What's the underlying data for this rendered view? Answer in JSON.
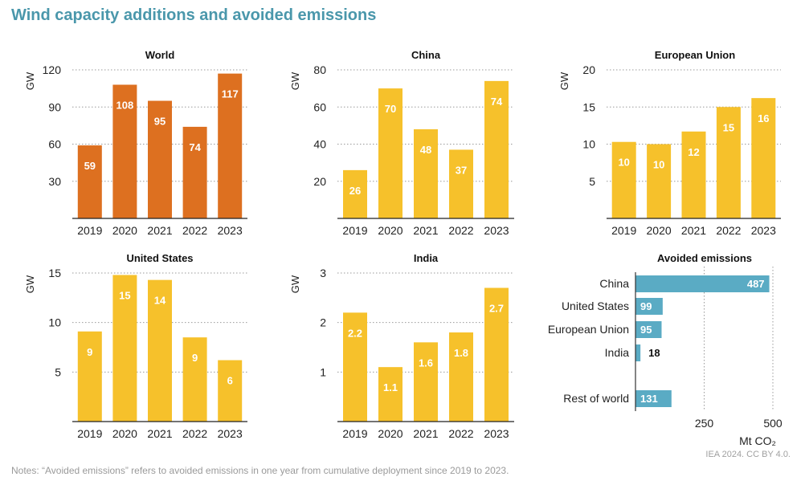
{
  "title": "Wind capacity additions and avoided emissions",
  "notes": "Notes: “Avoided emissions” refers to avoided emissions in one year from cumulative deployment since 2019 to 2023.",
  "credit": "IEA 2024. CC BY 4.0.",
  "colors": {
    "world": "#dd7020",
    "country": "#f6c12b",
    "emissions": "#5aabc4",
    "title": "#4a97ab"
  },
  "chart_data": [
    {
      "type": "bar",
      "title": "World",
      "ylabel": "GW",
      "categories": [
        "2019",
        "2020",
        "2021",
        "2022",
        "2023"
      ],
      "values": [
        59,
        108,
        95,
        74,
        117
      ],
      "labels": [
        "59",
        "108",
        "95",
        "74",
        "117"
      ],
      "ylim": [
        0,
        120
      ],
      "yticks": [
        30,
        60,
        90,
        120
      ],
      "color": "#dd7020",
      "grid": true
    },
    {
      "type": "bar",
      "title": "China",
      "ylabel": "GW",
      "categories": [
        "2019",
        "2020",
        "2021",
        "2022",
        "2023"
      ],
      "values": [
        26,
        70,
        48,
        37,
        74
      ],
      "labels": [
        "26",
        "70",
        "48",
        "37",
        "74"
      ],
      "ylim": [
        0,
        80
      ],
      "yticks": [
        20,
        40,
        60,
        80
      ],
      "color": "#f6c12b",
      "grid": true
    },
    {
      "type": "bar",
      "title": "European Union",
      "ylabel": "GW",
      "categories": [
        "2019",
        "2020",
        "2021",
        "2022",
        "2023"
      ],
      "values": [
        10.3,
        10,
        11.7,
        15,
        16.2
      ],
      "labels": [
        "10",
        "10",
        "12",
        "15",
        "16"
      ],
      "ylim": [
        0,
        20
      ],
      "yticks": [
        5,
        10,
        15,
        20
      ],
      "color": "#f6c12b",
      "grid": true
    },
    {
      "type": "bar",
      "title": "United States",
      "ylabel": "GW",
      "categories": [
        "2019",
        "2020",
        "2021",
        "2022",
        "2023"
      ],
      "values": [
        9.1,
        14.8,
        14.3,
        8.5,
        6.2
      ],
      "labels": [
        "9",
        "15",
        "14",
        "9",
        "6"
      ],
      "ylim": [
        0,
        15
      ],
      "yticks": [
        5,
        10,
        15
      ],
      "color": "#f6c12b",
      "grid": true
    },
    {
      "type": "bar",
      "title": "India",
      "ylabel": "GW",
      "categories": [
        "2019",
        "2020",
        "2021",
        "2022",
        "2023"
      ],
      "values": [
        2.2,
        1.1,
        1.6,
        1.8,
        2.7
      ],
      "labels": [
        "2.2",
        "1.1",
        "1.6",
        "1.8",
        "2.7"
      ],
      "ylim": [
        0,
        3
      ],
      "yticks": [
        1,
        2,
        3
      ],
      "color": "#f6c12b",
      "grid": true
    },
    {
      "type": "barh",
      "title": "Avoided emissions",
      "xlabel": "Mt CO₂",
      "categories": [
        "China",
        "United States",
        "European Union",
        "India",
        "Rest of world"
      ],
      "values": [
        487,
        99,
        95,
        18,
        131
      ],
      "xlim": [
        0,
        500
      ],
      "xticks": [
        250,
        500
      ],
      "color": "#5aabc4",
      "grid": true
    }
  ]
}
